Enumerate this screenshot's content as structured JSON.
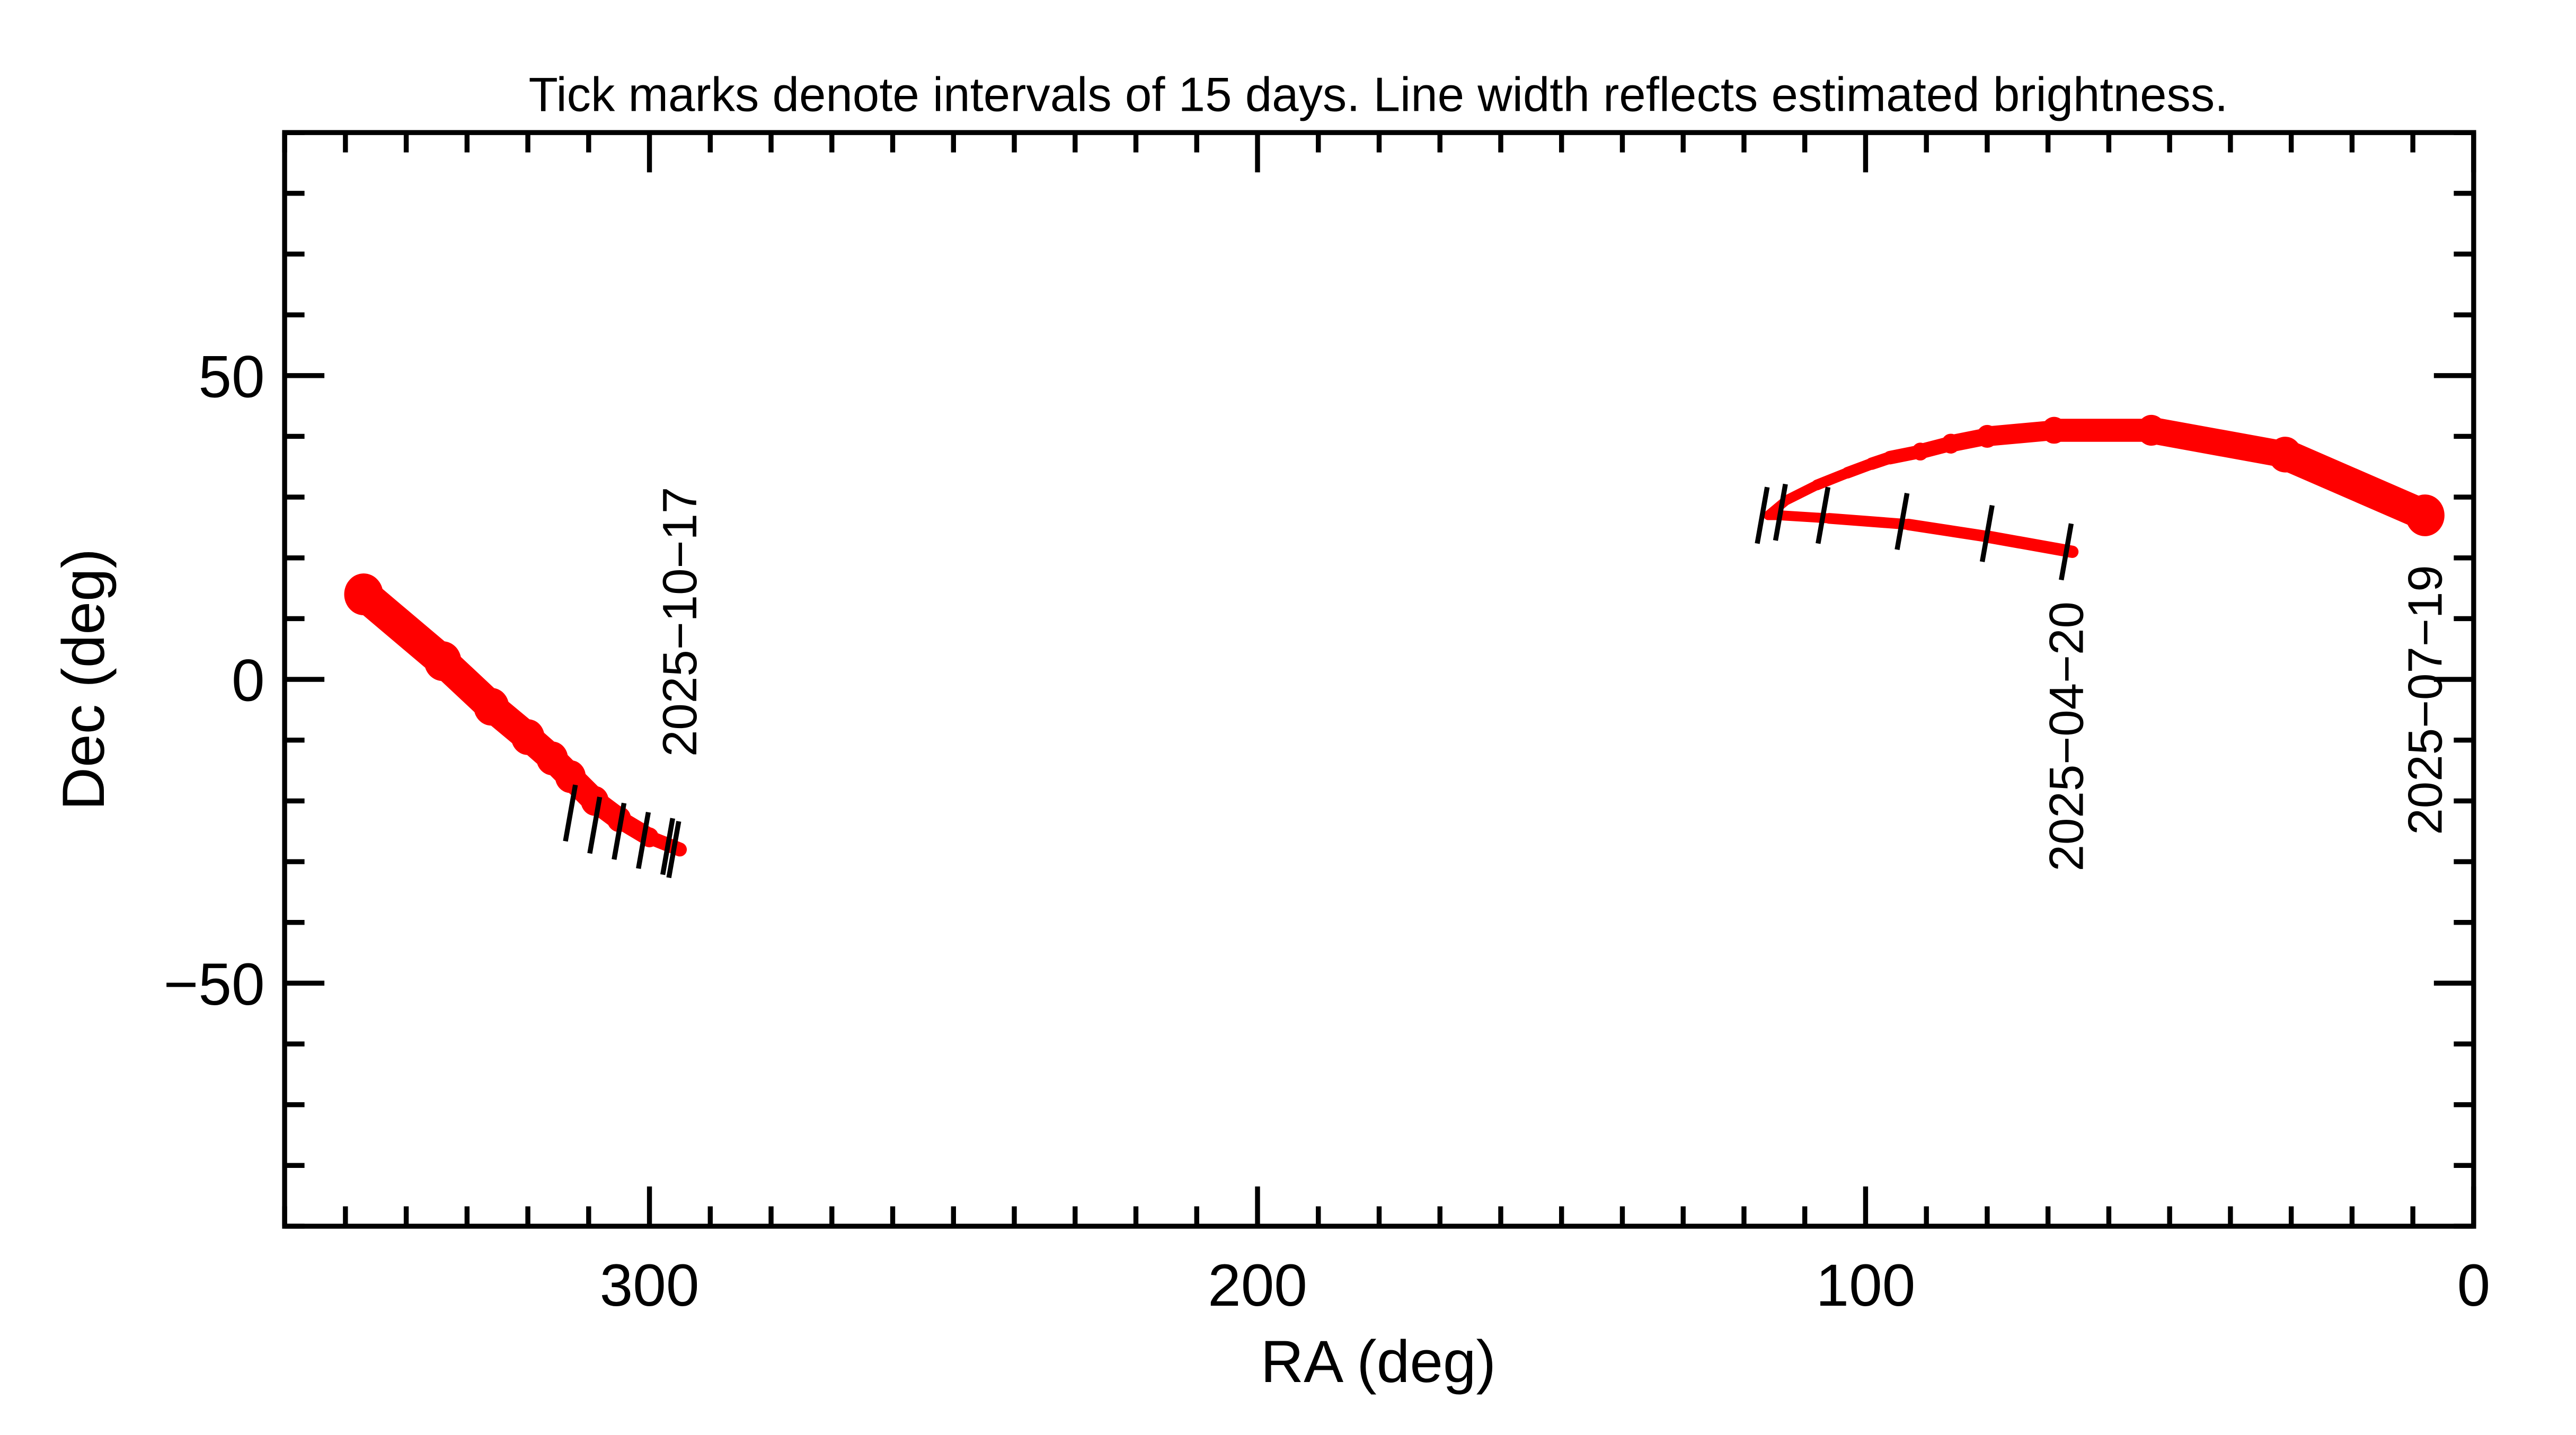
{
  "chart_data": {
    "type": "line",
    "title": "Tick marks denote intervals of 15 days.  Line width reflects estimated brightness.",
    "xlabel": "RA (deg)",
    "ylabel": "Dec (deg)",
    "xlim": [
      360,
      0
    ],
    "ylim": [
      -90,
      90
    ],
    "x_reversed": true,
    "x_major_ticks": [
      300,
      200,
      100,
      0
    ],
    "x_tick_labels": [
      "300",
      "200",
      "100",
      "0"
    ],
    "x_minor_step": 10,
    "y_major_ticks": [
      50,
      0,
      -50
    ],
    "y_tick_labels": [
      "50",
      "0",
      "−50"
    ],
    "y_minor_step": 10,
    "grid": false,
    "series_color": "#ff0000",
    "tick_color": "#000000",
    "segments": [
      {
        "points": [
          [
            66,
            21,
            1.6
          ],
          [
            80,
            23.5,
            1.5
          ],
          [
            93,
            25.5,
            1.4
          ],
          [
            106,
            26.5,
            1.3
          ],
          [
            114,
            27,
            1.2
          ],
          [
            116,
            27,
            1.2
          ],
          [
            113,
            29.5,
            1.2
          ],
          [
            108,
            32,
            1.3
          ],
          [
            103,
            34,
            1.4
          ],
          [
            99,
            35.5,
            1.5
          ],
          [
            96,
            36.5,
            1.6
          ],
          [
            91,
            37.5,
            1.8
          ],
          [
            86,
            38.8,
            2.0
          ],
          [
            80,
            40,
            2.3
          ],
          [
            69,
            41,
            2.7
          ],
          [
            53,
            41,
            3.1
          ],
          [
            31,
            37,
            3.6
          ],
          [
            8,
            27,
            4.2
          ]
        ],
        "ticks": [
          [
            67,
            21
          ],
          [
            80,
            24
          ],
          [
            94,
            26
          ],
          [
            107,
            27
          ],
          [
            114,
            27.5
          ],
          [
            117,
            27
          ]
        ],
        "labels": [
          {
            "text": "2025−04−20",
            "ra": 67,
            "dec": 21
          },
          {
            "text": "2025−07−19",
            "ra": 8,
            "dec": 27
          }
        ]
      },
      {
        "points": [
          [
            295,
            -28,
            1.5
          ],
          [
            300,
            -26,
            2
          ],
          [
            305,
            -23,
            2.6
          ],
          [
            309,
            -20,
            3
          ],
          [
            313,
            -16,
            3.3
          ],
          [
            316,
            -13,
            3.4
          ],
          [
            320,
            -9.5,
            3.6
          ],
          [
            326,
            -4.5,
            3.8
          ],
          [
            334,
            3,
            4
          ],
          [
            347,
            14,
            4.2
          ]
        ],
        "ticks": [
          [
            296,
            -28
          ],
          [
            297,
            -27.5
          ],
          [
            301,
            -26.5
          ],
          [
            305,
            -25
          ],
          [
            309,
            -24
          ],
          [
            313,
            -22
          ]
        ],
        "labels": [
          {
            "text": "2025−10−17",
            "ra": 295,
            "dec": -28
          }
        ]
      }
    ]
  }
}
